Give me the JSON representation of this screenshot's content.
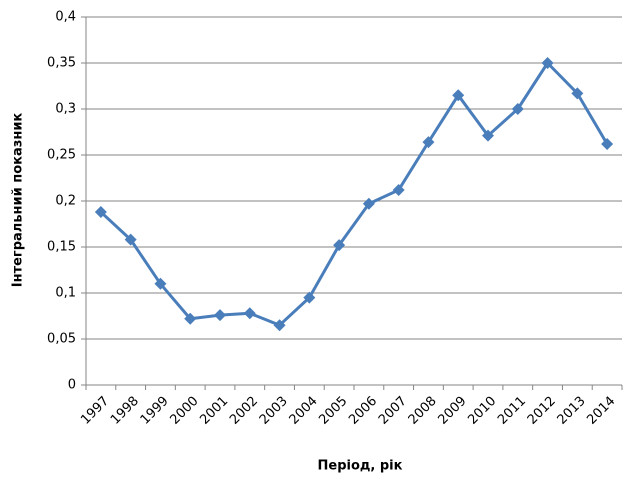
{
  "chart_data": {
    "type": "line",
    "x_label": "Період, рік",
    "y_label": "Інтегральний показник",
    "categories": [
      "1997",
      "1998",
      "1999",
      "2000",
      "2001",
      "2002",
      "2003",
      "2004",
      "2005",
      "2006",
      "2007",
      "2008",
      "2009",
      "2010",
      "2011",
      "2012",
      "2013",
      "2014"
    ],
    "series": [
      {
        "name": "Інтегральний показник",
        "color": "#4a7ebb",
        "values": [
          0.188,
          0.158,
          0.11,
          0.072,
          0.076,
          0.078,
          0.065,
          0.095,
          0.152,
          0.197,
          0.212,
          0.264,
          0.315,
          0.271,
          0.3,
          0.35,
          0.317,
          0.262
        ]
      }
    ],
    "ylim": [
      0,
      0.4
    ],
    "yticks": [
      0,
      {
        "value": 0.05,
        "label": "0,05"
      },
      {
        "value": 0.1,
        "label": "0,1"
      },
      {
        "value": 0.15,
        "label": "0,15"
      },
      {
        "value": 0.2,
        "label": "0,2"
      },
      {
        "value": 0.25,
        "label": "0,25"
      },
      {
        "value": 0.3,
        "label": "0,3"
      },
      {
        "value": 0.35,
        "label": "0,35"
      },
      {
        "value": 0.4,
        "label": "0,4"
      }
    ],
    "grid": true
  }
}
